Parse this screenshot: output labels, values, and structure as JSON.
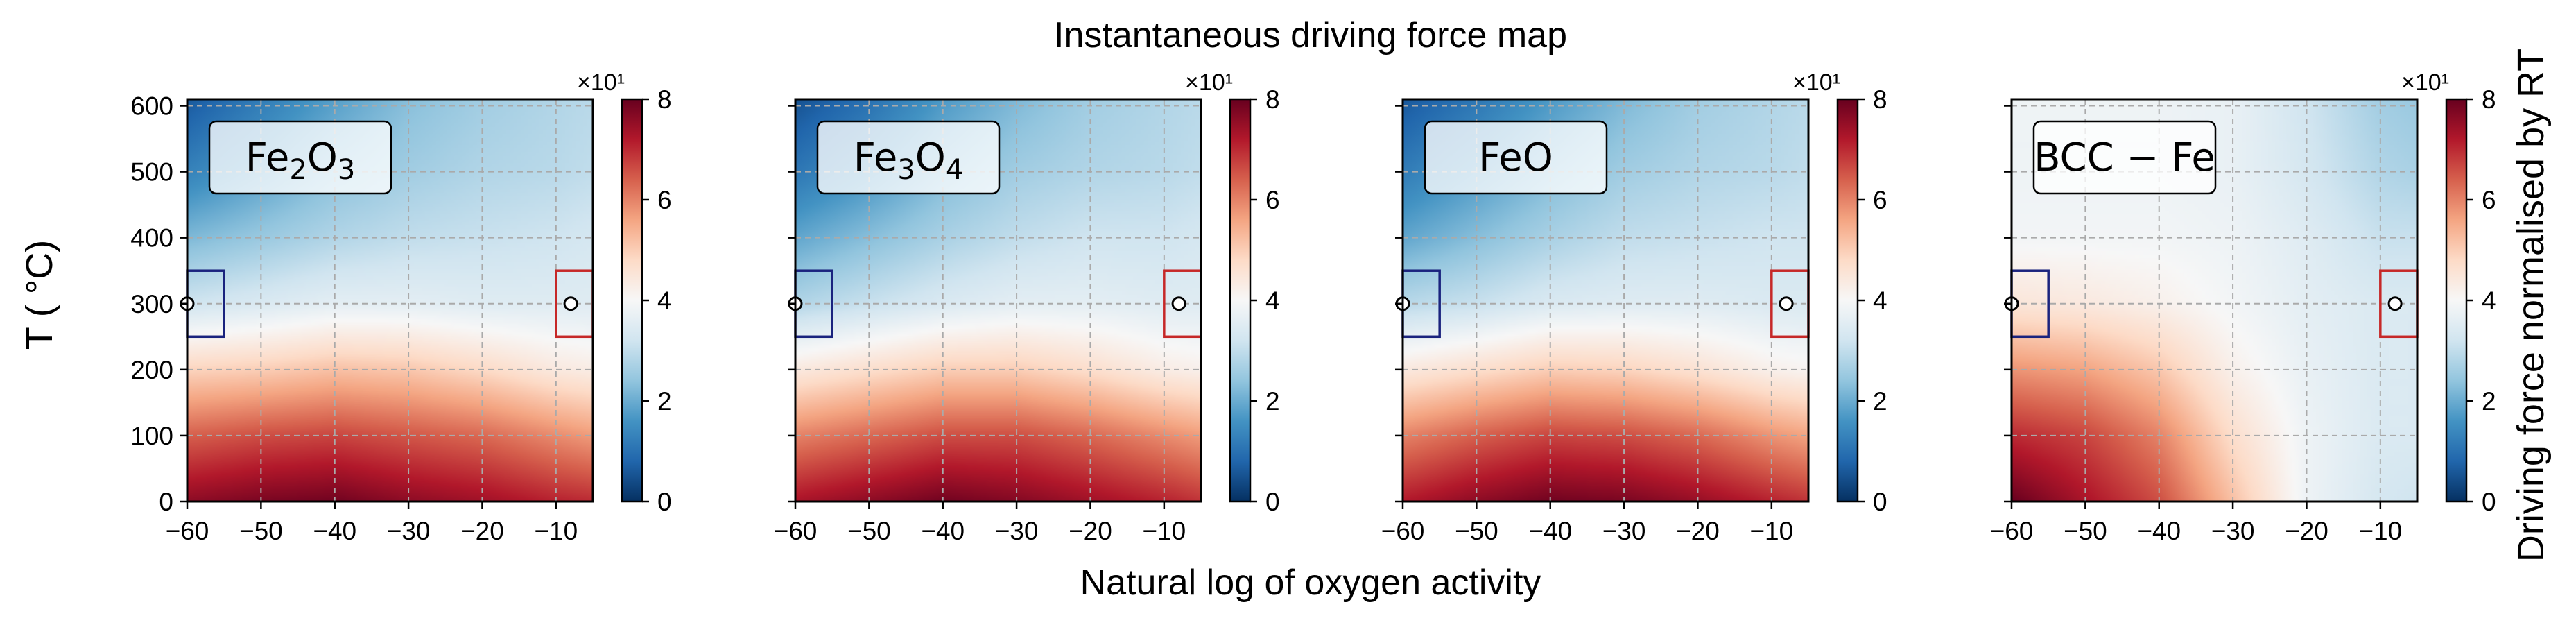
{
  "chart_data": {
    "type": "heatmap",
    "title": "Instantaneous driving force map",
    "xlabel": "Natural log of oxygen activity",
    "ylabel": "T ( °C)",
    "colorbar_label": "Driving force normalised by RT",
    "colorbar_offset_text": "×10¹",
    "colormap": "RdBu_r",
    "grid": true,
    "xlim": [
      -60,
      -5
    ],
    "ylim": [
      0,
      610
    ],
    "xticks": [
      -60,
      -50,
      -40,
      -30,
      -20,
      -10
    ],
    "xtick_labels": [
      "−60",
      "−50",
      "−40",
      "−30",
      "−20",
      "−10"
    ],
    "yticks": [
      0,
      100,
      200,
      300,
      400,
      500,
      600
    ],
    "ytick_labels": [
      "0",
      "100",
      "200",
      "300",
      "400",
      "500",
      "600"
    ],
    "colorbar_range": [
      0,
      8
    ],
    "colorbar_ticks": [
      0,
      2,
      4,
      6,
      8
    ],
    "colorbar_tick_labels": [
      "0",
      "2",
      "4",
      "6",
      "8"
    ],
    "markers": [
      {
        "x": -60,
        "y": 300,
        "color": "#1a237e",
        "box_x": [
          -60,
          -55
        ],
        "box_y": [
          250,
          350
        ]
      },
      {
        "x": -8,
        "y": 300,
        "color": "#c62828",
        "box_x": [
          -10,
          -5
        ],
        "box_y": [
          250,
          350
        ]
      }
    ],
    "panels": [
      {
        "phase_base": "Fe",
        "phase_sub1": "2",
        "phase_mid": "O",
        "phase_sub2": "3",
        "grid_x": [
          -60,
          -50,
          -40,
          -30,
          -20,
          -10,
          -5
        ],
        "grid_y": [
          0,
          100,
          200,
          300,
          400,
          500,
          610
        ],
        "z": [
          [
            7.6,
            7.8,
            7.9,
            7.6,
            7.4,
            7.1,
            7.0
          ],
          [
            6.4,
            6.6,
            6.7,
            6.5,
            6.3,
            5.9,
            5.7
          ],
          [
            4.9,
            5.0,
            5.2,
            5.1,
            4.8,
            4.4,
            4.3
          ],
          [
            3.2,
            3.4,
            3.6,
            3.6,
            3.5,
            3.5,
            3.5
          ],
          [
            2.2,
            2.5,
            2.8,
            3.0,
            3.1,
            3.2,
            3.3
          ],
          [
            1.3,
            1.8,
            2.3,
            2.6,
            2.8,
            2.9,
            3.0
          ],
          [
            0.6,
            1.2,
            1.8,
            2.3,
            2.6,
            2.8,
            2.9
          ]
        ]
      },
      {
        "phase_base": "Fe",
        "phase_sub1": "3",
        "phase_mid": "O",
        "phase_sub2": "4",
        "grid_x": [
          -60,
          -50,
          -40,
          -30,
          -20,
          -10,
          -5
        ],
        "grid_y": [
          0,
          100,
          200,
          300,
          400,
          500,
          610
        ],
        "z": [
          [
            7.3,
            7.6,
            7.9,
            7.7,
            7.4,
            7.1,
            6.9
          ],
          [
            6.0,
            6.3,
            6.6,
            6.6,
            6.3,
            5.9,
            5.7
          ],
          [
            4.4,
            4.7,
            5.0,
            5.0,
            4.7,
            4.3,
            4.2
          ],
          [
            2.8,
            3.1,
            3.4,
            3.6,
            3.6,
            3.5,
            3.5
          ],
          [
            1.9,
            2.3,
            2.7,
            3.0,
            3.2,
            3.2,
            3.3
          ],
          [
            1.1,
            1.6,
            2.2,
            2.6,
            2.8,
            2.9,
            3.0
          ],
          [
            0.5,
            1.0,
            1.7,
            2.2,
            2.6,
            2.8,
            2.9
          ]
        ]
      },
      {
        "phase_base": "FeO",
        "phase_sub1": "",
        "phase_mid": "",
        "phase_sub2": "",
        "grid_x": [
          -60,
          -50,
          -40,
          -30,
          -20,
          -10,
          -5
        ],
        "grid_y": [
          0,
          100,
          200,
          300,
          400,
          500,
          610
        ],
        "z": [
          [
            7.2,
            7.6,
            7.9,
            7.8,
            7.5,
            7.1,
            6.9
          ],
          [
            6.0,
            6.4,
            6.7,
            6.6,
            6.3,
            5.8,
            5.6
          ],
          [
            4.4,
            4.7,
            5.0,
            4.9,
            4.6,
            4.2,
            4.1
          ],
          [
            2.9,
            3.1,
            3.4,
            3.5,
            3.5,
            3.4,
            3.4
          ],
          [
            1.9,
            2.3,
            2.7,
            3.0,
            3.1,
            3.2,
            3.2
          ],
          [
            1.2,
            1.7,
            2.2,
            2.6,
            2.8,
            2.9,
            3.0
          ],
          [
            0.6,
            1.1,
            1.7,
            2.2,
            2.6,
            2.8,
            2.9
          ]
        ]
      },
      {
        "phase_base": "BCC − Fe",
        "phase_sub1": "",
        "phase_mid": "",
        "phase_sub2": "",
        "grid_x": [
          -60,
          -50,
          -40,
          -30,
          -20,
          -10,
          -5
        ],
        "grid_y": [
          0,
          100,
          200,
          300,
          400,
          500,
          610
        ],
        "z": [
          [
            8.0,
            7.3,
            6.6,
            5.2,
            3.8,
            3.3,
            3.2
          ],
          [
            7.0,
            6.7,
            6.0,
            4.7,
            3.8,
            3.4,
            3.4
          ],
          [
            5.8,
            5.6,
            5.1,
            4.2,
            3.7,
            3.4,
            3.4
          ],
          [
            4.5,
            4.4,
            4.2,
            3.9,
            3.6,
            3.4,
            3.4
          ],
          [
            3.9,
            3.9,
            3.9,
            3.8,
            3.5,
            3.1,
            3.1
          ],
          [
            3.8,
            3.8,
            3.8,
            3.7,
            3.3,
            2.8,
            2.7
          ],
          [
            3.8,
            3.8,
            3.8,
            3.7,
            3.2,
            2.6,
            2.5
          ]
        ]
      }
    ]
  }
}
